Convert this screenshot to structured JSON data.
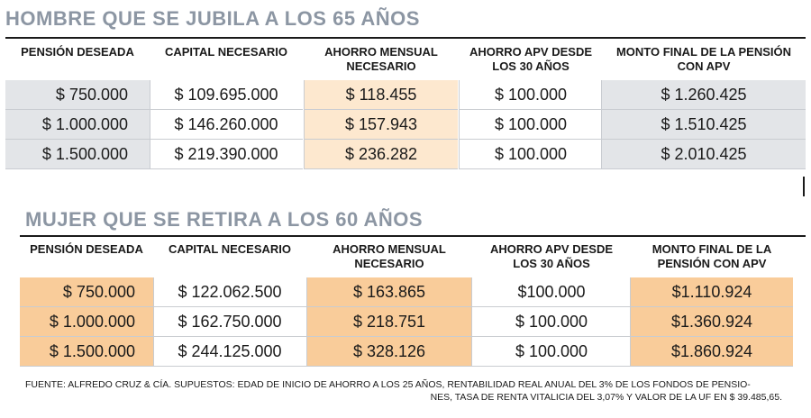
{
  "table1": {
    "title": "HOMBRE QUE SE JUBILA A LOS 65 AÑOS",
    "headers": [
      [
        "PENSIÓN DESEADA"
      ],
      [
        "CAPITAL NECESARIO"
      ],
      [
        "AHORRO MENSUAL",
        "NECESARIO"
      ],
      [
        "AHORRO APV DESDE",
        "LOS 30 AÑOS"
      ],
      [
        "MONTO FINAL DE LA PENSIÓN",
        "CON APV"
      ]
    ],
    "rows": [
      [
        "$ 750.000",
        "$ 109.695.000",
        "$ 118.455",
        "$ 100.000",
        "$ 1.260.425"
      ],
      [
        "$ 1.000.000",
        "$ 146.260.000",
        "$ 157.943",
        "$ 100.000",
        "$ 1.510.425"
      ],
      [
        "$ 1.500.000",
        "$ 219.390.000",
        "$ 236.282",
        "$ 100.000",
        "$ 2.010.425"
      ]
    ]
  },
  "table2": {
    "title": "MUJER QUE SE RETIRA A LOS 60 AÑOS",
    "headers": [
      [
        "PENSIÓN DESEADA"
      ],
      [
        "CAPITAL NECESARIO"
      ],
      [
        "AHORRO MENSUAL",
        "NECESARIO"
      ],
      [
        "AHORRO APV DESDE",
        "LOS 30 AÑOS"
      ],
      [
        "MONTO FINAL DE LA",
        "PENSIÓN CON APV"
      ]
    ],
    "rows": [
      [
        "$ 750.000",
        "$ 122.062.500",
        "$ 163.865",
        "$100.000",
        "$1.110.924"
      ],
      [
        "$ 1.000.000",
        "$ 162.750.000",
        "$ 218.751",
        "$ 100.000",
        "$1.360.924"
      ],
      [
        "$ 1.500.000",
        "$ 244.125.000",
        "$ 328.126",
        "$ 100.000",
        "$1.860.924"
      ]
    ]
  },
  "footnote": {
    "line1": "FUENTE: ALFREDO CRUZ & CÍA.  SUPUESTOS: EDAD DE INICIO DE AHORRO A LOS 25 AÑOS, RENTABILIDAD REAL ANUAL DEL 3% DE LOS FONDOS DE PENSIO-",
    "line2": "NES, TASA DE RENTA VITALICIA DEL 3,07% Y VALOR DE LA UF EN $ 39.485,65."
  },
  "colors": {
    "title": "#8c96a3",
    "gray_fill": "#e3e5e8",
    "peach_light_fill": "#fde8cf",
    "peach_fill": "#f9cc9a"
  }
}
